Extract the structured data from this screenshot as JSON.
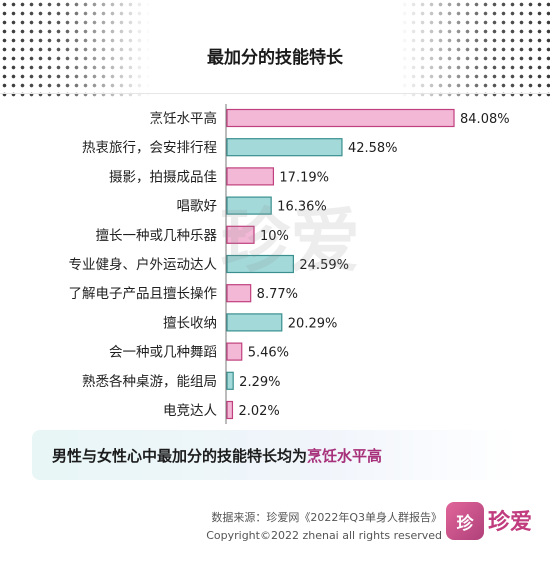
{
  "chart_data": {
    "type": "bar",
    "title": "最加分的技能特长",
    "categories": [
      "烹饪水平高",
      "热衷旅行，会安排行程",
      "摄影，拍摄成品佳",
      "唱歌好",
      "擅长一种或几种乐器",
      "专业健身、户外运动达人",
      "了解电子产品且擅长操作",
      "擅长收纳",
      "会一种或几种舞蹈",
      "熟悉各种桌游，能组局",
      "电竞达人"
    ],
    "values": [
      84.08,
      42.58,
      17.19,
      16.36,
      10,
      24.59,
      8.77,
      20.29,
      5.46,
      2.29,
      2.02
    ],
    "value_labels": [
      "84.08%",
      "42.58%",
      "17.19%",
      "16.36%",
      "10%",
      "24.59%",
      "8.77%",
      "20.29%",
      "5.46%",
      "2.29%",
      "2.02%"
    ],
    "bar_colors": [
      "#f2b8d6",
      "#a4d9d9",
      "#f2b8d6",
      "#a4d9d9",
      "#f2b8d6",
      "#a4d9d9",
      "#f2b8d6",
      "#a4d9d9",
      "#f2b8d6",
      "#a4d9d9",
      "#f2b8d6"
    ],
    "border_colors": [
      "#c0407e",
      "#3a8f8f",
      "#c0407e",
      "#3a8f8f",
      "#c0407e",
      "#3a8f8f",
      "#c0407e",
      "#3a8f8f",
      "#c0407e",
      "#3a8f8f",
      "#c0407e"
    ],
    "xlim": [
      0,
      100
    ],
    "orientation": "horizontal"
  },
  "summary": {
    "prefix": "男性与女性心中最加分的技能特长均为",
    "highlight": "烹饪水平高"
  },
  "footer": {
    "source": "数据来源：珍爱网《2022年Q3单身人群报告》",
    "copyright": "Copyright©2022  zhenai  all rights reserved",
    "logo_badge": "珍",
    "logo_text": "珍爱"
  },
  "watermark": "珍爱",
  "colors": {
    "accent": "#c0407e",
    "teal": "#3a8f8f"
  }
}
